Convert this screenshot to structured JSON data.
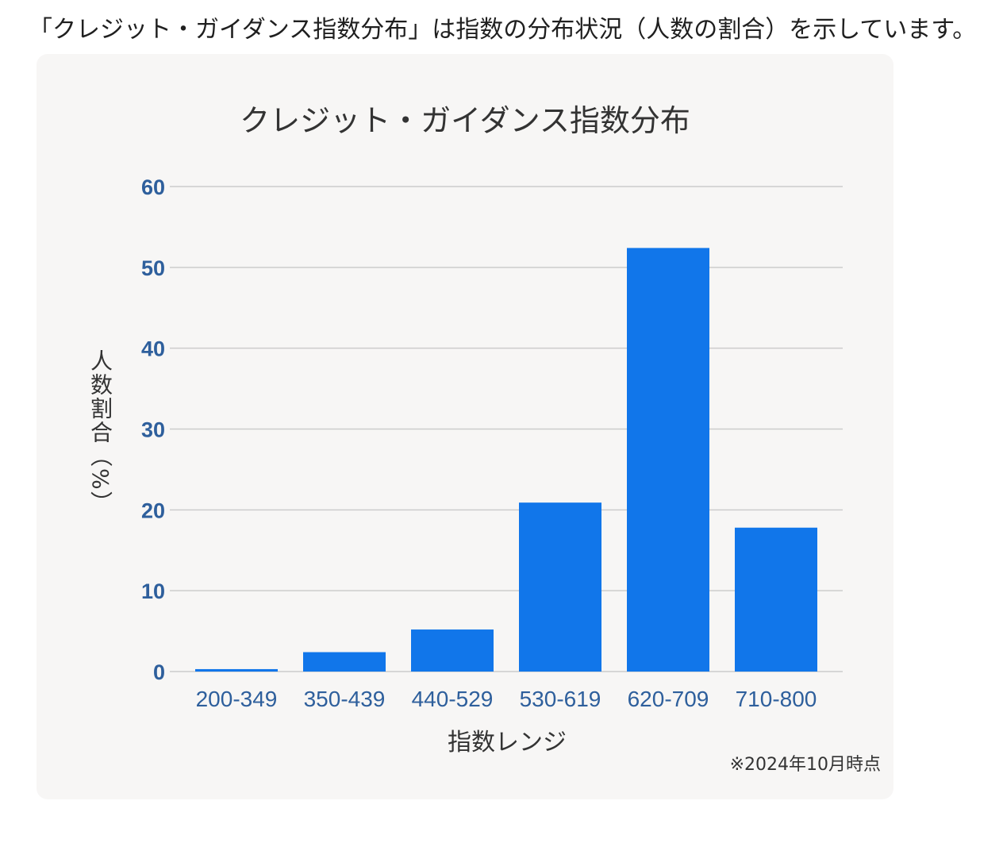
{
  "intro_text": "「クレジット・ガイダンス指数分布」は指数の分布状況（人数の割合）を示しています。",
  "note": "※2024年10月時点",
  "colors": {
    "bar": "#1176ea",
    "grid": "#cccccc",
    "tick_text": "#2e5f9c",
    "card_background": "#f7f6f5"
  },
  "chart_data": {
    "type": "bar",
    "title": "クレジット・ガイダンス指数分布",
    "xlabel": "指数レンジ",
    "ylabel": "人数割合（%）",
    "categories": [
      "200-349",
      "350-439",
      "440-529",
      "530-619",
      "620-709",
      "710-800"
    ],
    "values": [
      0.3,
      2.4,
      5.2,
      20.9,
      52.4,
      17.8
    ],
    "ylim": [
      0,
      60
    ],
    "yticks": [
      0,
      10,
      20,
      30,
      40,
      50,
      60
    ],
    "grid": true,
    "legend": "none"
  }
}
